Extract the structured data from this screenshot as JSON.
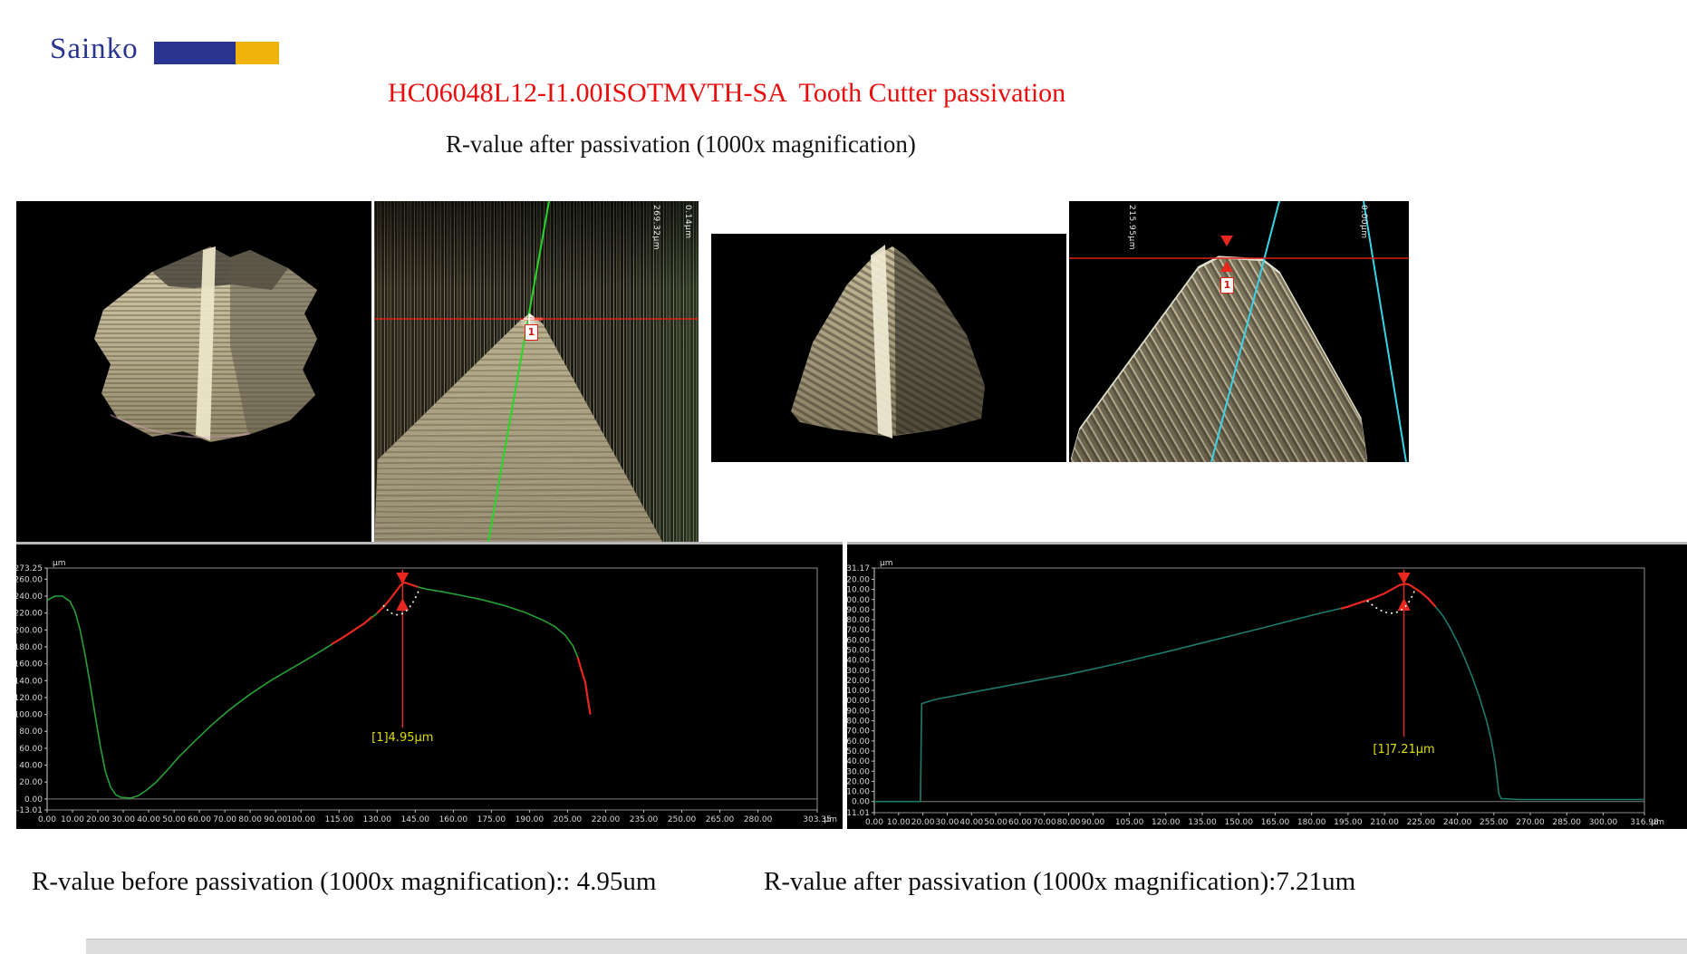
{
  "logo": {
    "text": "Sainko"
  },
  "header": {
    "title": "HC06048L12-I1.00ISOTMVTH-SA  Tooth Cutter passivation",
    "subtitle": "R-value after passivation (1000x magnification)"
  },
  "captions": {
    "left": "R-value before passivation (1000x magnification):: 4.95um",
    "right": "R-value after passivation (1000x magnification):7.21um"
  },
  "colors": {
    "title_red": "#e90d0d",
    "logo_navy": "#28348d",
    "logo_gold": "#f0b30c",
    "profile_green": "#27a035",
    "profile_teal": "#1d7a6e",
    "marker_red": "#e8281e",
    "annotation_yellow": "#dede00",
    "axis_text": "#d8d8d8"
  },
  "left_view": {
    "scale_label_1": "269.32μm",
    "scale_label_2": "0.14μm",
    "marker": "1"
  },
  "right_view": {
    "scale_label_1": "215.95μm",
    "scale_label_2": "0.00μm",
    "marker": "1"
  },
  "chart_data": [
    {
      "type": "line",
      "name": "surface-profile-before-passivation",
      "unit": "μm",
      "xlim": [
        0,
        303.35
      ],
      "ylim": [
        -13.01,
        273.25
      ],
      "x_ticks": [
        0,
        10,
        20,
        30,
        40,
        50,
        60,
        70,
        80,
        90,
        100,
        115,
        130,
        145,
        160,
        175,
        190,
        205,
        220,
        235,
        250,
        265,
        280,
        303.35
      ],
      "y_ticks": [
        273.25,
        260,
        240,
        220,
        200,
        180,
        160,
        140,
        120,
        100,
        80,
        60,
        40,
        20,
        0,
        -13.01
      ],
      "profile": [
        [
          0,
          235
        ],
        [
          3,
          240
        ],
        [
          6,
          240
        ],
        [
          9,
          234
        ],
        [
          11,
          222
        ],
        [
          13,
          200
        ],
        [
          15,
          170
        ],
        [
          17,
          135
        ],
        [
          19,
          98
        ],
        [
          21,
          62
        ],
        [
          23,
          32
        ],
        [
          25,
          14
        ],
        [
          27,
          5
        ],
        [
          29,
          2
        ],
        [
          33,
          1
        ],
        [
          36,
          4
        ],
        [
          39,
          10
        ],
        [
          43,
          20
        ],
        [
          47,
          33
        ],
        [
          52,
          50
        ],
        [
          58,
          68
        ],
        [
          65,
          88
        ],
        [
          72,
          106
        ],
        [
          80,
          124
        ],
        [
          88,
          140
        ],
        [
          96,
          154
        ],
        [
          104,
          168
        ],
        [
          110,
          179
        ],
        [
          116,
          190
        ],
        [
          121,
          200
        ],
        [
          126,
          210
        ],
        [
          130,
          220
        ],
        [
          133,
          229
        ],
        [
          135,
          236
        ],
        [
          137,
          244
        ],
        [
          139,
          252
        ],
        [
          140,
          255
        ],
        [
          141,
          256
        ],
        [
          143,
          254
        ],
        [
          146,
          251
        ],
        [
          150,
          248
        ],
        [
          156,
          245
        ],
        [
          163,
          241
        ],
        [
          171,
          236
        ],
        [
          180,
          229
        ],
        [
          188,
          221
        ],
        [
          195,
          212
        ],
        [
          200,
          204
        ],
        [
          204,
          194
        ],
        [
          207,
          182
        ],
        [
          209,
          168
        ],
        [
          210.5,
          152
        ],
        [
          212,
          138
        ],
        [
          213,
          118
        ],
        [
          214,
          100
        ]
      ],
      "red_segments": [
        [
          [
            112,
            183
          ],
          [
            116,
            190
          ],
          [
            121,
            200
          ],
          [
            125,
            208
          ],
          [
            128,
            216
          ]
        ],
        [
          [
            130,
            220
          ],
          [
            133,
            229
          ],
          [
            135,
            236
          ],
          [
            137,
            244
          ],
          [
            139,
            252
          ],
          [
            140,
            255
          ],
          [
            141,
            256
          ],
          [
            143,
            254
          ],
          [
            146,
            251
          ]
        ],
        [
          [
            209,
            168
          ],
          [
            210.5,
            152
          ],
          [
            212,
            138
          ],
          [
            213,
            118
          ],
          [
            214,
            100
          ]
        ]
      ],
      "annotation": {
        "label": "[1]4.95μm",
        "x": 140,
        "measured_r_um": 4.95
      }
    },
    {
      "type": "line",
      "name": "surface-profile-after-passivation",
      "unit": "μm",
      "xlim": [
        0,
        316.98
      ],
      "ylim": [
        -11.01,
        231.17
      ],
      "x_ticks": [
        0,
        10,
        20,
        30,
        40,
        50,
        60,
        70,
        80,
        90,
        105,
        120,
        135,
        150,
        165,
        180,
        195,
        210,
        225,
        240,
        255,
        270,
        285,
        300,
        316.98
      ],
      "y_ticks": [
        231.17,
        220,
        210,
        200,
        190,
        180,
        170,
        160,
        150,
        140,
        130,
        120,
        110,
        100,
        90,
        80,
        70,
        60,
        50,
        40,
        30,
        20,
        10,
        0,
        -11.01
      ],
      "profile": [
        [
          0,
          0
        ],
        [
          19,
          0
        ],
        [
          19.5,
          97
        ],
        [
          25,
          101
        ],
        [
          40,
          108
        ],
        [
          60,
          117
        ],
        [
          80,
          126
        ],
        [
          99,
          136
        ],
        [
          120,
          148
        ],
        [
          140,
          160
        ],
        [
          160,
          172
        ],
        [
          181,
          185
        ],
        [
          195,
          193
        ],
        [
          200,
          197
        ],
        [
          205,
          201
        ],
        [
          210,
          206
        ],
        [
          213,
          210
        ],
        [
          216,
          214
        ],
        [
          218,
          215.5
        ],
        [
          220,
          215
        ],
        [
          222,
          212
        ],
        [
          225,
          207
        ],
        [
          228,
          201
        ],
        [
          231,
          193
        ],
        [
          234,
          184
        ],
        [
          237,
          172
        ],
        [
          240,
          158
        ],
        [
          243,
          142
        ],
        [
          246,
          124
        ],
        [
          249,
          104
        ],
        [
          252,
          80
        ],
        [
          254,
          60
        ],
        [
          255.5,
          40
        ],
        [
          256.5,
          20
        ],
        [
          257,
          8
        ],
        [
          258,
          3
        ],
        [
          265,
          2
        ],
        [
          290,
          2
        ],
        [
          316.98,
          2
        ]
      ],
      "red_segments": [
        [
          [
            192,
            191
          ],
          [
            195,
            193
          ],
          [
            200,
            197
          ],
          [
            205,
            201
          ],
          [
            210,
            206
          ],
          [
            213,
            210
          ],
          [
            216,
            214
          ],
          [
            218,
            215.5
          ],
          [
            220,
            215
          ],
          [
            222,
            212
          ],
          [
            225,
            207
          ],
          [
            228,
            201
          ],
          [
            231,
            193
          ]
        ]
      ],
      "annotation": {
        "label": "[1]7.21μm",
        "x": 218,
        "measured_r_um": 7.21
      }
    }
  ]
}
